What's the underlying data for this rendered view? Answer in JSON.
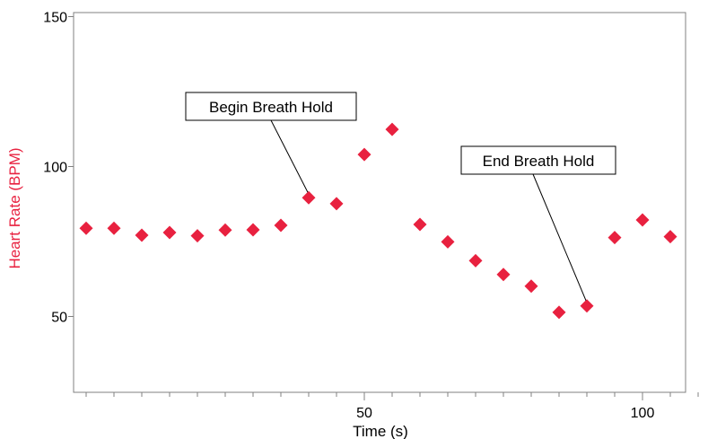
{
  "chart_data": {
    "type": "scatter",
    "title": "",
    "xlabel": "Time (s)",
    "ylabel": "Heart Rate (BPM)",
    "xlim": [
      0,
      120
    ],
    "ylim": [
      25,
      150
    ],
    "x_ticks_labeled": [
      50,
      100
    ],
    "x_ticks_minor": [
      0,
      5,
      10,
      15,
      20,
      25,
      30,
      35,
      40,
      45,
      50,
      55,
      60,
      65,
      70,
      75,
      80,
      85,
      90,
      95,
      100,
      105,
      110,
      115
    ],
    "y_ticks_labeled": [
      50,
      100,
      150
    ],
    "grid": false,
    "legend": "none",
    "marker": "diamond",
    "series": [
      {
        "color": "#e8213f",
        "points": [
          {
            "x": 0,
            "y": 79.4
          },
          {
            "x": 5,
            "y": 79.4
          },
          {
            "x": 10,
            "y": 77.1
          },
          {
            "x": 15,
            "y": 78
          },
          {
            "x": 20,
            "y": 76.9
          },
          {
            "x": 25,
            "y": 78.8
          },
          {
            "x": 30,
            "y": 78.9
          },
          {
            "x": 35,
            "y": 80.4
          },
          {
            "x": 40,
            "y": 89.6
          },
          {
            "x": 45,
            "y": 87.6
          },
          {
            "x": 50,
            "y": 104
          },
          {
            "x": 55,
            "y": 112.4
          },
          {
            "x": 60,
            "y": 80.7
          },
          {
            "x": 65,
            "y": 74.9
          },
          {
            "x": 70,
            "y": 68.6
          },
          {
            "x": 75,
            "y": 64
          },
          {
            "x": 80,
            "y": 60.1
          },
          {
            "x": 85,
            "y": 51.4
          },
          {
            "x": 90,
            "y": 53.5
          },
          {
            "x": 95,
            "y": 76.3
          },
          {
            "x": 100,
            "y": 82.2
          },
          {
            "x": 105,
            "y": 76.6
          }
        ]
      }
    ],
    "annotations": [
      {
        "text": "Begin Breath Hold",
        "target": {
          "x": 40,
          "y": 89.6
        }
      },
      {
        "text": "End Breath Hold",
        "target": {
          "x": 90,
          "y": 53.5
        }
      }
    ]
  },
  "colors": {
    "marker": "#e8213f",
    "ylabel": "#e8213f",
    "axis": "#808080",
    "text": "#000000"
  }
}
